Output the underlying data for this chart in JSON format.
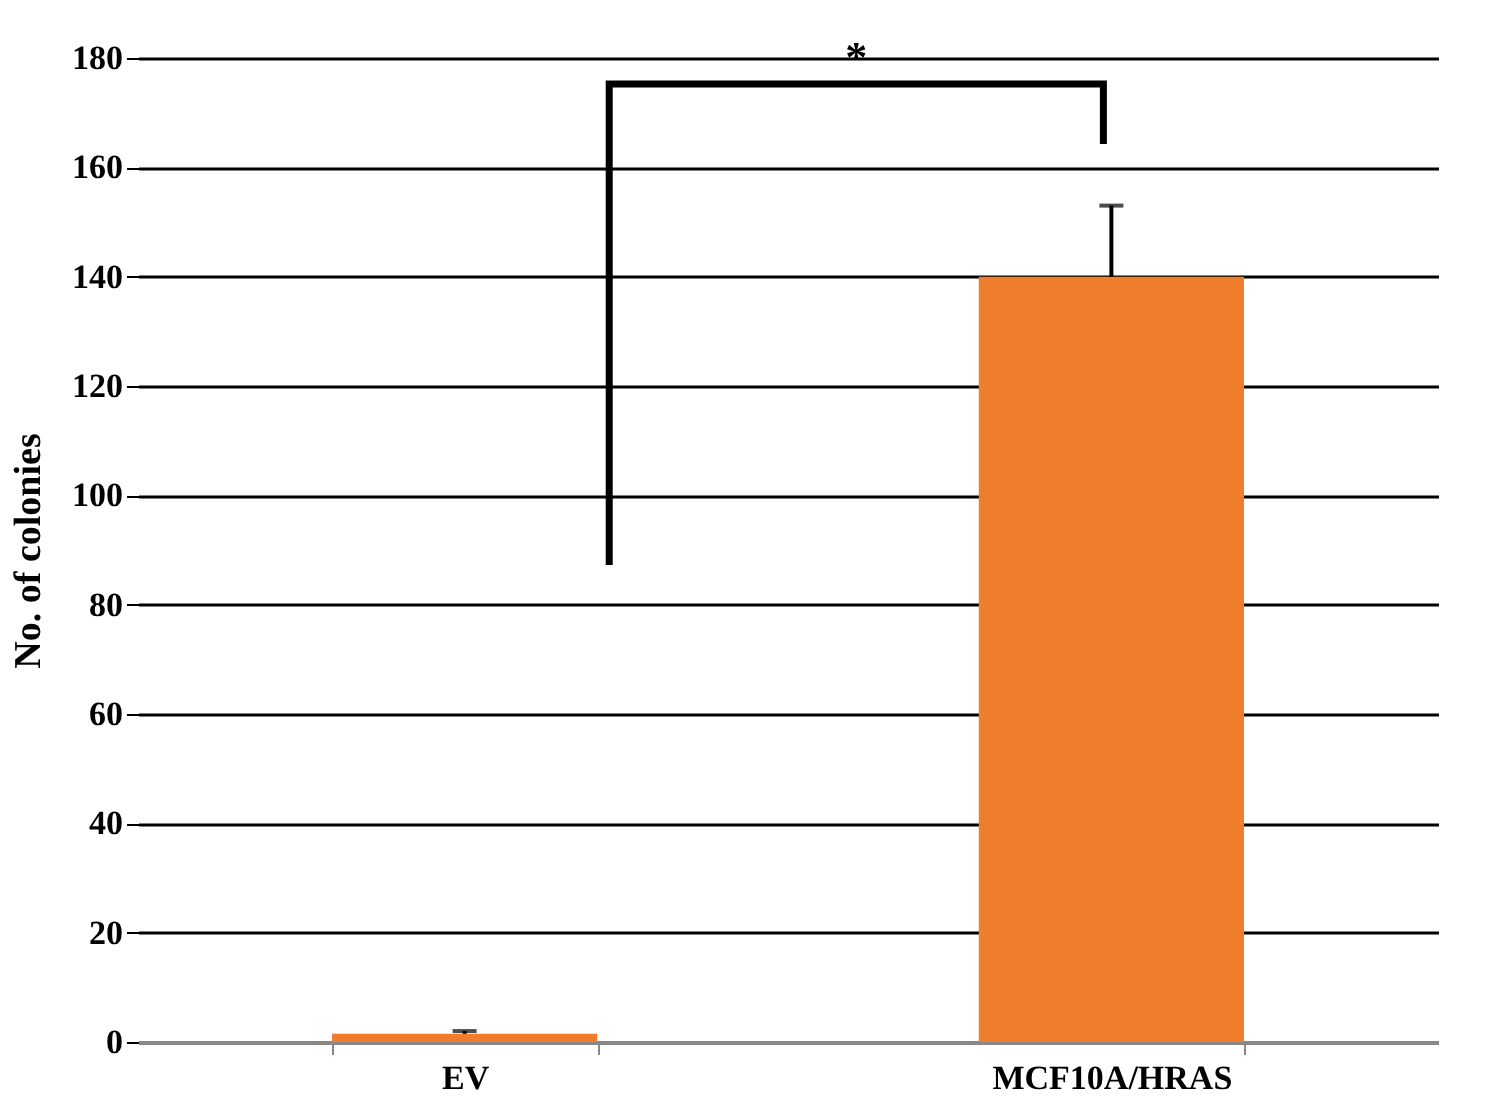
{
  "chart_data": {
    "type": "bar",
    "ylabel": "No. of colonies",
    "categories": [
      "EV",
      "MCF10A/HRAS"
    ],
    "values": [
      1.5,
      140
    ],
    "color": "#f07d2c",
    "errors": [
      [
        1.5,
        2
      ],
      [
        140,
        153
      ]
    ],
    "ylim": [
      0,
      180
    ],
    "yticks": [
      0,
      20,
      40,
      60,
      80,
      100,
      120,
      140,
      160,
      180
    ],
    "grid": "y",
    "annotations": [
      "*"
    ]
  }
}
